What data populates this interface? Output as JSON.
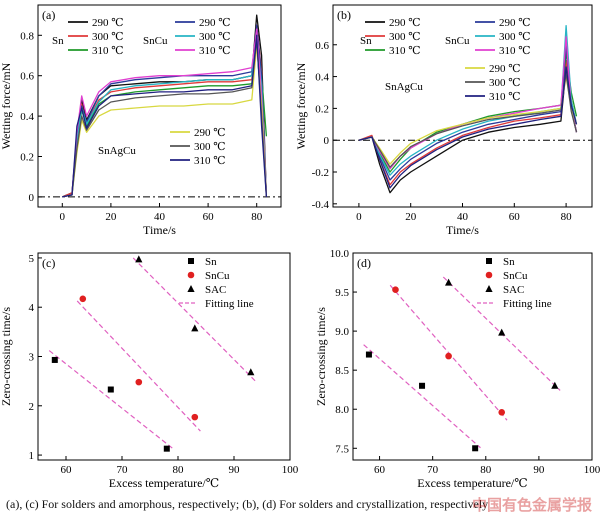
{
  "caption": "(a), (c) For solders and  amorphous, respectively; (b), (d) For solders and crystallization, respectively",
  "watermark": "中国有色金属学报",
  "colors": {
    "290": "#111111",
    "300": "#e03a3a",
    "310": "#1f9a2a",
    "cu290": "#2a3a9a",
    "cu300": "#27b5c5",
    "cu310": "#e040d0",
    "ag290": "#d8d840",
    "ag300": "#555555",
    "ag310": "#202080",
    "fit": "#e060c0"
  },
  "chart_data": [
    {
      "id": "a",
      "type": "line",
      "panel_label": "(a)",
      "xlabel": "Time/s",
      "ylabel": "Wetting force/mN",
      "xlim": [
        -10,
        90
      ],
      "ylim": [
        -0.05,
        0.95
      ],
      "xticks": [
        0,
        20,
        40,
        60,
        80
      ],
      "yticks": [
        0,
        0.2,
        0.4,
        0.6,
        0.8
      ],
      "ytick_labels": [
        "0",
        "0.2",
        "0.4",
        "0.6",
        "0.8"
      ],
      "zero_line": true,
      "legend_groups": [
        {
          "alloy": "Sn",
          "entries": [
            "290 ℃",
            "300 ℃",
            "310 ℃"
          ],
          "keys": [
            "290",
            "300",
            "310"
          ]
        },
        {
          "alloy": "SnCu",
          "entries": [
            "290 ℃",
            "300 ℃",
            "310 ℃"
          ],
          "keys": [
            "cu290",
            "cu300",
            "cu310"
          ]
        },
        {
          "alloy": "SnAgCu",
          "entries": [
            "290 ℃",
            "300 ℃",
            "310 ℃"
          ],
          "keys": [
            "ag290",
            "ag300",
            "ag310"
          ]
        }
      ],
      "series": [
        {
          "key": "290",
          "x": [
            0,
            4,
            6,
            8,
            10,
            15,
            20,
            30,
            40,
            50,
            60,
            70,
            78,
            80,
            82,
            84
          ],
          "y": [
            0,
            0.02,
            0.3,
            0.48,
            0.38,
            0.5,
            0.55,
            0.56,
            0.57,
            0.57,
            0.58,
            0.58,
            0.6,
            0.9,
            0.7,
            0
          ]
        },
        {
          "key": "300",
          "x": [
            0,
            4,
            6,
            8,
            10,
            15,
            20,
            30,
            40,
            50,
            60,
            70,
            78,
            80,
            82,
            84
          ],
          "y": [
            0,
            0.02,
            0.28,
            0.46,
            0.36,
            0.48,
            0.52,
            0.54,
            0.55,
            0.56,
            0.57,
            0.57,
            0.58,
            0.85,
            0.62,
            0
          ]
        },
        {
          "key": "310",
          "x": [
            0,
            4,
            6,
            8,
            10,
            15,
            20,
            30,
            40,
            50,
            60,
            70,
            78,
            80,
            82,
            84
          ],
          "y": [
            0,
            0.01,
            0.25,
            0.43,
            0.35,
            0.46,
            0.5,
            0.52,
            0.53,
            0.54,
            0.55,
            0.55,
            0.56,
            0.8,
            0.6,
            0.3
          ]
        },
        {
          "key": "cu290",
          "x": [
            0,
            4,
            6,
            8,
            10,
            15,
            20,
            30,
            40,
            50,
            60,
            70,
            78,
            80,
            82,
            84
          ],
          "y": [
            0,
            0.01,
            0.3,
            0.45,
            0.37,
            0.5,
            0.56,
            0.58,
            0.59,
            0.6,
            0.6,
            0.6,
            0.62,
            0.85,
            0.6,
            0
          ]
        },
        {
          "key": "cu300",
          "x": [
            0,
            4,
            6,
            8,
            10,
            15,
            20,
            30,
            40,
            50,
            60,
            70,
            78,
            80,
            82,
            84
          ],
          "y": [
            0,
            0.01,
            0.27,
            0.44,
            0.36,
            0.47,
            0.53,
            0.55,
            0.56,
            0.57,
            0.58,
            0.58,
            0.6,
            0.8,
            0.55,
            0
          ]
        },
        {
          "key": "cu310",
          "x": [
            0,
            4,
            6,
            8,
            10,
            15,
            20,
            30,
            40,
            50,
            60,
            70,
            78,
            80,
            82,
            84
          ],
          "y": [
            0,
            0.01,
            0.32,
            0.5,
            0.4,
            0.52,
            0.57,
            0.59,
            0.6,
            0.6,
            0.61,
            0.62,
            0.64,
            0.83,
            0.5,
            0
          ]
        },
        {
          "key": "ag290",
          "x": [
            0,
            4,
            6,
            8,
            10,
            15,
            20,
            30,
            40,
            50,
            60,
            70,
            78,
            80,
            82,
            84
          ],
          "y": [
            0,
            0.01,
            0.22,
            0.38,
            0.32,
            0.4,
            0.43,
            0.44,
            0.45,
            0.45,
            0.46,
            0.46,
            0.48,
            0.75,
            0.45,
            0
          ]
        },
        {
          "key": "ag300",
          "x": [
            0,
            4,
            6,
            8,
            10,
            15,
            20,
            30,
            40,
            50,
            60,
            70,
            78,
            80,
            82,
            84
          ],
          "y": [
            0,
            0.01,
            0.24,
            0.4,
            0.33,
            0.43,
            0.47,
            0.49,
            0.5,
            0.51,
            0.51,
            0.52,
            0.54,
            0.78,
            0.4,
            0
          ]
        },
        {
          "key": "ag310",
          "x": [
            0,
            4,
            6,
            8,
            10,
            15,
            20,
            30,
            40,
            50,
            60,
            70,
            78,
            80,
            82,
            84
          ],
          "y": [
            0,
            0.01,
            0.35,
            0.44,
            0.34,
            0.45,
            0.5,
            0.51,
            0.52,
            0.52,
            0.53,
            0.53,
            0.55,
            0.8,
            0.35,
            0
          ]
        }
      ]
    },
    {
      "id": "b",
      "type": "line",
      "panel_label": "(b)",
      "xlabel": "Time/s",
      "ylabel": "Wetting force/mN",
      "xlim": [
        -10,
        90
      ],
      "ylim": [
        -0.42,
        0.85
      ],
      "xticks": [
        0,
        20,
        40,
        60,
        80
      ],
      "yticks": [
        -0.4,
        -0.2,
        0,
        0.2,
        0.4,
        0.6
      ],
      "ytick_labels": [
        "-0.4",
        "-0.2",
        "0",
        "0.2",
        "0.4",
        "0.6"
      ],
      "zero_line": true,
      "legend_groups": [
        {
          "alloy": "Sn",
          "entries": [
            "290 ℃",
            "300 ℃",
            "310 ℃"
          ],
          "keys": [
            "290",
            "300",
            "310"
          ]
        },
        {
          "alloy": "SnCu",
          "entries": [
            "290 ℃",
            "300 ℃",
            "310 ℃"
          ],
          "keys": [
            "cu290",
            "cu300",
            "cu310"
          ]
        },
        {
          "alloy": "SnAgCu",
          "entries": [
            "290 ℃",
            "300 ℃",
            "310 ℃"
          ],
          "keys": [
            "ag290",
            "ag300",
            "ag310"
          ]
        }
      ],
      "series": [
        {
          "key": "290",
          "x": [
            0,
            5,
            8,
            12,
            16,
            20,
            30,
            40,
            50,
            60,
            70,
            78,
            80,
            82,
            84
          ],
          "y": [
            0,
            0.02,
            -0.15,
            -0.33,
            -0.25,
            -0.2,
            -0.1,
            0.0,
            0.05,
            0.08,
            0.1,
            0.12,
            0.45,
            0.2,
            0.05
          ]
        },
        {
          "key": "300",
          "x": [
            0,
            5,
            8,
            12,
            16,
            20,
            30,
            40,
            50,
            60,
            70,
            78,
            80,
            82,
            84
          ],
          "y": [
            0,
            0.03,
            -0.12,
            -0.28,
            -0.2,
            -0.15,
            -0.05,
            0.03,
            0.08,
            0.12,
            0.14,
            0.16,
            0.5,
            0.25,
            0.1
          ]
        },
        {
          "key": "310",
          "x": [
            0,
            5,
            8,
            12,
            16,
            20,
            30,
            40,
            50,
            60,
            70,
            78,
            80,
            82,
            84
          ],
          "y": [
            0,
            0.02,
            -0.08,
            -0.2,
            -0.12,
            -0.05,
            0.05,
            0.1,
            0.15,
            0.18,
            0.2,
            0.22,
            0.55,
            0.3,
            0.15
          ]
        },
        {
          "key": "cu290",
          "x": [
            0,
            5,
            8,
            12,
            16,
            20,
            30,
            40,
            50,
            60,
            70,
            78,
            80,
            82,
            84
          ],
          "y": [
            0,
            0.02,
            -0.1,
            -0.25,
            -0.18,
            -0.12,
            -0.02,
            0.05,
            0.1,
            0.13,
            0.16,
            0.18,
            0.6,
            0.2,
            0.05
          ]
        },
        {
          "key": "cu300",
          "x": [
            0,
            5,
            8,
            12,
            16,
            20,
            30,
            40,
            50,
            60,
            70,
            78,
            80,
            82,
            84
          ],
          "y": [
            0,
            0.02,
            -0.09,
            -0.22,
            -0.15,
            -0.1,
            0.0,
            0.07,
            0.12,
            0.15,
            0.18,
            0.2,
            0.72,
            0.25,
            0.1
          ]
        },
        {
          "key": "cu310",
          "x": [
            0,
            5,
            8,
            12,
            16,
            20,
            30,
            40,
            50,
            60,
            70,
            78,
            80,
            82,
            84
          ],
          "y": [
            0,
            0.02,
            -0.07,
            -0.18,
            -0.1,
            -0.05,
            0.04,
            0.1,
            0.14,
            0.17,
            0.2,
            0.22,
            0.65,
            0.2,
            0.05
          ]
        },
        {
          "key": "ag290",
          "x": [
            0,
            5,
            8,
            12,
            16,
            20,
            30,
            40,
            50,
            60,
            70,
            78,
            80,
            82,
            84
          ],
          "y": [
            0,
            0.02,
            -0.05,
            -0.15,
            -0.08,
            -0.02,
            0.06,
            0.1,
            0.14,
            0.16,
            0.18,
            0.2,
            0.4,
            0.2,
            0.1
          ]
        },
        {
          "key": "ag300",
          "x": [
            0,
            5,
            8,
            12,
            16,
            20,
            30,
            40,
            50,
            60,
            70,
            78,
            80,
            82,
            84
          ],
          "y": [
            0,
            0.02,
            -0.06,
            -0.17,
            -0.1,
            -0.04,
            0.04,
            0.09,
            0.13,
            0.15,
            0.17,
            0.19,
            0.42,
            0.18,
            0.05
          ]
        },
        {
          "key": "ag310",
          "x": [
            0,
            5,
            8,
            12,
            16,
            20,
            30,
            40,
            50,
            60,
            70,
            78,
            80,
            82,
            84
          ],
          "y": [
            0,
            0.02,
            -0.12,
            -0.3,
            -0.22,
            -0.16,
            -0.06,
            0.02,
            0.07,
            0.1,
            0.13,
            0.15,
            0.46,
            0.22,
            0.1
          ]
        }
      ]
    },
    {
      "id": "c",
      "type": "scatter",
      "panel_label": "(c)",
      "xlabel": "Excess temperature/℃",
      "ylabel": "Zero-crossing time/s",
      "xlim": [
        55,
        100
      ],
      "ylim": [
        0.9,
        5.1
      ],
      "xticks": [
        60,
        70,
        80,
        90,
        100
      ],
      "yticks": [
        1,
        2,
        3,
        4,
        5
      ],
      "ytick_labels": [
        "1",
        "2",
        "3",
        "4",
        "5"
      ],
      "legend": [
        "Sn",
        "SnCu",
        "SAC",
        "Fitting line"
      ],
      "series": [
        {
          "name": "Sn",
          "marker": "square",
          "x": [
            58,
            68,
            78
          ],
          "y": [
            2.93,
            2.33,
            1.13
          ]
        },
        {
          "name": "SnCu",
          "marker": "circle",
          "x": [
            63,
            73,
            83
          ],
          "y": [
            4.17,
            2.48,
            1.77
          ]
        },
        {
          "name": "SAC",
          "marker": "triangle",
          "x": [
            73,
            83,
            93
          ],
          "y": [
            4.97,
            3.57,
            2.68
          ]
        }
      ]
    },
    {
      "id": "d",
      "type": "scatter",
      "panel_label": "(d)",
      "xlabel": "Excess temperature/℃",
      "ylabel": "Zero-crossing time/s",
      "xlim": [
        55,
        100
      ],
      "ylim": [
        7.35,
        10.0
      ],
      "xticks": [
        60,
        70,
        80,
        90,
        100
      ],
      "yticks": [
        7.5,
        8.0,
        8.5,
        9.0,
        9.5,
        10.0
      ],
      "ytick_labels": [
        "7.5",
        "8.0",
        "8.5",
        "9.0",
        "9.5",
        "10.0"
      ],
      "legend": [
        "Sn",
        "SnCu",
        "SAC",
        "Fitting line"
      ],
      "series": [
        {
          "name": "Sn",
          "marker": "square",
          "x": [
            58,
            68,
            78
          ],
          "y": [
            8.7,
            8.3,
            7.5
          ]
        },
        {
          "name": "SnCu",
          "marker": "circle",
          "x": [
            63,
            73,
            83
          ],
          "y": [
            9.53,
            8.68,
            7.96
          ]
        },
        {
          "name": "SAC",
          "marker": "triangle",
          "x": [
            73,
            83,
            93
          ],
          "y": [
            9.62,
            8.98,
            8.3
          ]
        }
      ]
    }
  ]
}
